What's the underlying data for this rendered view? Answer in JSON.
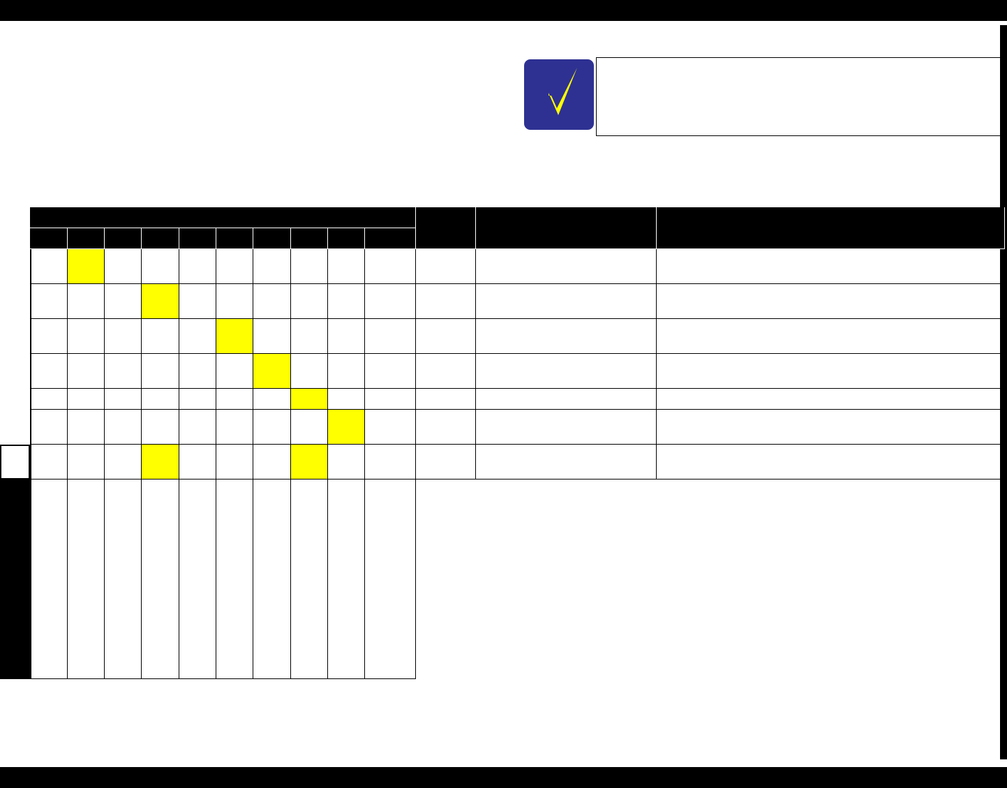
{
  "page": {
    "header_text": "",
    "footer_text": ""
  },
  "note": {
    "icon": "checkmark-icon",
    "text": "",
    "icon_bg": "#2e3192",
    "icon_fg": "#ffff00"
  },
  "table": {
    "group_header": "",
    "sub_headers": [
      "",
      "",
      "",
      "",
      "",
      "",
      "",
      "",
      "",
      ""
    ],
    "extra_headers": [
      "",
      "",
      ""
    ],
    "row_count": 7,
    "highlighted_cells": [
      [
        0,
        1
      ],
      [
        1,
        3
      ],
      [
        2,
        5
      ],
      [
        3,
        6
      ],
      [
        4,
        7
      ],
      [
        5,
        8
      ],
      [
        6,
        3
      ],
      [
        6,
        7
      ]
    ],
    "highlight_color": "#ffff00"
  }
}
